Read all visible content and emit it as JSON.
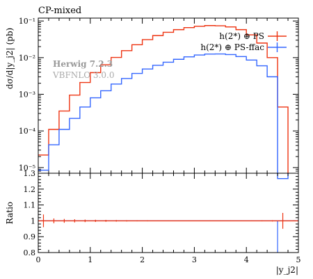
{
  "title": "CP-mixed",
  "watermark": {
    "line1": "Herwig 7.2.3",
    "line2": "VBFNLO 3.0.0"
  },
  "chart_data": [
    {
      "type": "line",
      "title": "CP-mixed",
      "ylabel": "dσ/d|y_j2| (pb)",
      "yscale": "log",
      "ylim": [
        7e-06,
        0.12
      ],
      "xlim": [
        0,
        5
      ],
      "yticks": [
        {
          "v": 0.1,
          "label": "10⁻¹"
        },
        {
          "v": 0.01,
          "label": "10⁻²"
        },
        {
          "v": 0.001,
          "label": "10⁻³"
        },
        {
          "v": 0.0001,
          "label": "10⁻⁴"
        },
        {
          "v": 1e-05,
          "label": "10⁻⁵"
        }
      ],
      "legend_position": "top-right",
      "bin_edges": [
        0,
        0.2,
        0.4,
        0.6,
        0.8,
        1.0,
        1.2,
        1.4,
        1.6,
        1.8,
        2.0,
        2.2,
        2.4,
        2.6,
        2.8,
        3.0,
        3.2,
        3.4,
        3.6,
        3.8,
        4.0,
        4.2,
        4.4,
        4.6,
        4.8
      ],
      "series": [
        {
          "name": "h(2*) ⊕ PS",
          "color": "#ee3311",
          "values": [
            2.2e-05,
            0.00011,
            0.00035,
            0.00095,
            0.0021,
            0.0039,
            0.0064,
            0.0101,
            0.0155,
            0.0225,
            0.031,
            0.04,
            0.049,
            0.058,
            0.066,
            0.072,
            0.075,
            0.074,
            0.069,
            0.058,
            0.042,
            0.025,
            0.01,
            0.00045
          ]
        },
        {
          "name": "h(2*) ⊕ PS-ffac",
          "color": "#3366ff",
          "values": [
            8.5e-06,
            4.2e-05,
            0.00011,
            0.00022,
            0.00045,
            0.0008,
            0.00125,
            0.0019,
            0.0027,
            0.0037,
            0.0049,
            0.0062,
            0.0075,
            0.009,
            0.0105,
            0.0118,
            0.0125,
            0.0126,
            0.0121,
            0.0107,
            0.0086,
            0.006,
            0.003,
            5e-06
          ]
        }
      ]
    },
    {
      "type": "line",
      "ylabel": "Ratio",
      "xlabel": "|y_j2|",
      "ylim": [
        0.8,
        1.3
      ],
      "xlim": [
        0,
        5
      ],
      "yticks": [
        {
          "v": 0.8,
          "label": "0.8"
        },
        {
          "v": 0.9,
          "label": "0.9"
        },
        {
          "v": 1.0,
          "label": "1"
        },
        {
          "v": 1.1,
          "label": "1.1"
        },
        {
          "v": 1.2,
          "label": "1.2"
        },
        {
          "v": 1.3,
          "label": "1.3"
        }
      ],
      "xticks": [
        {
          "v": 0,
          "label": "0"
        },
        {
          "v": 1,
          "label": "1"
        },
        {
          "v": 2,
          "label": "2"
        },
        {
          "v": 3,
          "label": "3"
        },
        {
          "v": 4,
          "label": "4"
        },
        {
          "v": 5,
          "label": "5"
        }
      ],
      "reference": 1.0,
      "ratio_errors": [
        0.04,
        0.015,
        0.012,
        0.01,
        0.008,
        0.007,
        0.006,
        0.005,
        0.004,
        0.003,
        0.003,
        0.002,
        0.002,
        0.002,
        0.002,
        0.002,
        0.002,
        0.002,
        0.002,
        0.002,
        0.002,
        0.003,
        0.004,
        0.05
      ],
      "blue_dropout_x": 4.6
    }
  ]
}
